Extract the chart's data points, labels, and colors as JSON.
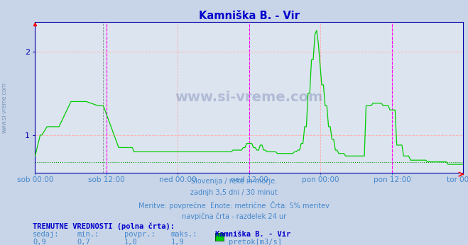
{
  "title": "Kamniška B. - Vir",
  "title_color": "#0000cc",
  "bg_color": "#c8d4e8",
  "plot_bg_color": "#dce4f0",
  "grid_color_h": "#ffb0b0",
  "line_color": "#00cc00",
  "avg_line_color": "#009900",
  "magenta_vline_color": "#ff00ff",
  "pink_vline_color": "#ffaaaa",
  "dark_vline_color": "#888888",
  "y_axis_color": "#0000aa",
  "xlabel_color": "#4488cc",
  "border_color": "#0000aa",
  "ylim_min": 0.55,
  "ylim_max": 2.35,
  "yticks": [
    1.0,
    2.0
  ],
  "avg_value": 0.68,
  "xtick_labels": [
    "sob 00:00",
    "sob 12:00",
    "ned 00:00",
    "ned 12:00",
    "pon 00:00",
    "pon 12:00",
    "tor 00:00"
  ],
  "footer_lines": [
    "Slovenija / reke in morje.",
    "zadnjh 3,5 dni / 30 minut",
    "Meritve: povprečne  Enote: metrične  Črta: 5% meritev",
    "navpična črta - razdelek 24 ur"
  ],
  "bottom_label_bold": "TRENUTNE VREDNOSTI (polna črta):",
  "bottom_cols": [
    "sedaj:",
    "min.:",
    "povpr.:",
    "maks.:",
    "Kamniška B. - Vir"
  ],
  "bottom_vals": [
    "0,9",
    "0,7",
    "1,0",
    "1,9",
    "pretok[m3/s]"
  ],
  "legend_color": "#00cc00",
  "n_points": 252
}
